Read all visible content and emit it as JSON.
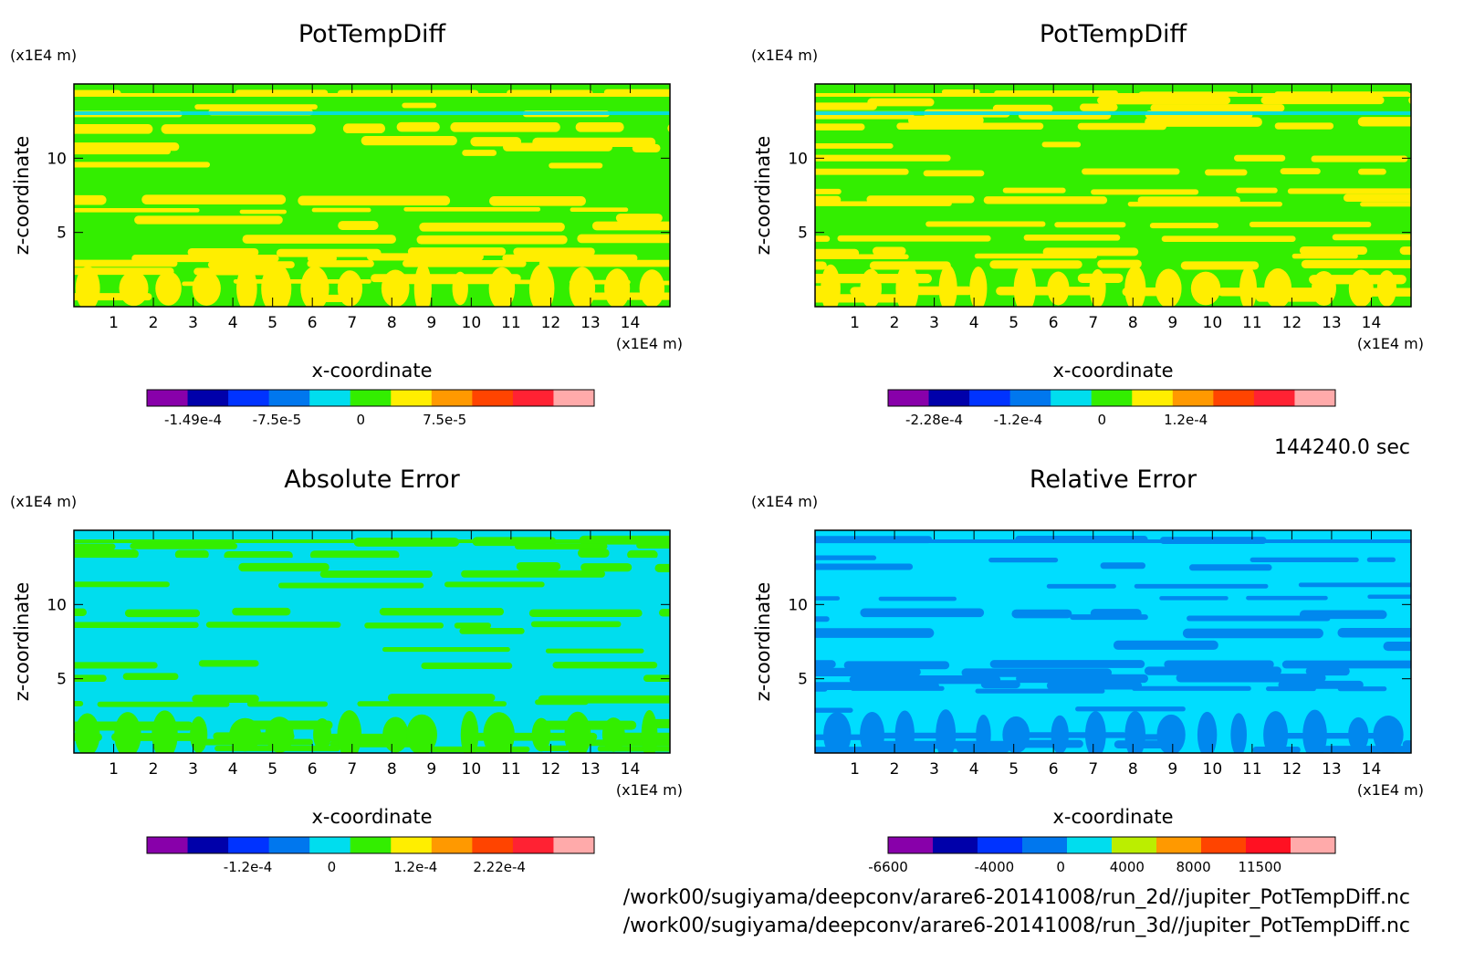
{
  "time_label": "144240.0 sec",
  "footer": {
    "line1": "/work00/sugiyama/deepconv/arare6-20141008/run_2d//jupiter_PotTempDiff.nc",
    "line2": "/work00/sugiyama/deepconv/arare6-20141008/run_3d//jupiter_PotTempDiff.nc"
  },
  "chart_data": [
    {
      "type": "heatmap",
      "title": "PotTempDiff",
      "xlabel": "x-coordinate",
      "ylabel": "z-coordinate",
      "xunit": "(x1E4 m)",
      "yunit": "(x1E4 m)",
      "xlim": [
        0,
        15
      ],
      "ylim": [
        0,
        15
      ],
      "xticks": [
        "1",
        "2",
        "3",
        "4",
        "5",
        "6",
        "7",
        "8",
        "9",
        "10",
        "11",
        "12",
        "13",
        "14"
      ],
      "yticks": [
        "5",
        "10"
      ],
      "field_colors": [
        "#33ee00",
        "#ffee00"
      ],
      "colorbar": {
        "colors": [
          "#8800aa",
          "#0000aa",
          "#0033ff",
          "#0077ee",
          "#00ddee",
          "#33ee00",
          "#ffee00",
          "#ff9900",
          "#ff4400",
          "#ff2233",
          "#ffaaaa"
        ],
        "ticks": [
          "-1.49e-4",
          "-7.5e-5",
          "0",
          "7.5e-5"
        ]
      }
    },
    {
      "type": "heatmap",
      "title": "PotTempDiff",
      "xlabel": "x-coordinate",
      "ylabel": "z-coordinate",
      "xunit": "(x1E4 m)",
      "yunit": "(x1E4 m)",
      "xlim": [
        0,
        15
      ],
      "ylim": [
        0,
        15
      ],
      "xticks": [
        "1",
        "2",
        "3",
        "4",
        "5",
        "6",
        "7",
        "8",
        "9",
        "10",
        "11",
        "12",
        "13",
        "14"
      ],
      "yticks": [
        "5",
        "10"
      ],
      "field_colors": [
        "#33ee00",
        "#ffee00"
      ],
      "colorbar": {
        "colors": [
          "#8800aa",
          "#0000aa",
          "#0033ff",
          "#0077ee",
          "#00ddee",
          "#33ee00",
          "#ffee00",
          "#ff9900",
          "#ff4400",
          "#ff2233",
          "#ffaaaa"
        ],
        "ticks": [
          "-2.28e-4",
          "-1.2e-4",
          "0",
          "1.2e-4"
        ]
      }
    },
    {
      "type": "heatmap",
      "title": "Absolute Error",
      "xlabel": "x-coordinate",
      "ylabel": "z-coordinate",
      "xunit": "(x1E4 m)",
      "yunit": "(x1E4 m)",
      "xlim": [
        0,
        15
      ],
      "ylim": [
        0,
        15
      ],
      "xticks": [
        "1",
        "2",
        "3",
        "4",
        "5",
        "6",
        "7",
        "8",
        "9",
        "10",
        "11",
        "12",
        "13",
        "14"
      ],
      "yticks": [
        "5",
        "10"
      ],
      "field_colors": [
        "#00ddee",
        "#33ee00"
      ],
      "colorbar": {
        "colors": [
          "#8800aa",
          "#0000aa",
          "#0033ff",
          "#0077ee",
          "#00ddee",
          "#33ee00",
          "#ffee00",
          "#ff9900",
          "#ff4400",
          "#ff2233",
          "#ffaaaa"
        ],
        "ticks": [
          "-1.2e-4",
          "0",
          "1.2e-4",
          "2.22e-4"
        ]
      }
    },
    {
      "type": "heatmap",
      "title": "Relative Error",
      "xlabel": "x-coordinate",
      "ylabel": "z-coordinate",
      "xunit": "(x1E4 m)",
      "yunit": "(x1E4 m)",
      "xlim": [
        0,
        15
      ],
      "ylim": [
        0,
        15
      ],
      "xticks": [
        "1",
        "2",
        "3",
        "4",
        "5",
        "6",
        "7",
        "8",
        "9",
        "10",
        "11",
        "12",
        "13",
        "14"
      ],
      "yticks": [
        "5",
        "10"
      ],
      "field_colors": [
        "#00ddff",
        "#0088ee"
      ],
      "colorbar": {
        "colors": [
          "#8800aa",
          "#0000aa",
          "#0033ff",
          "#0077ee",
          "#00ddee",
          "#bbee00",
          "#ff9900",
          "#ff4400",
          "#ff1122",
          "#ffaaaa"
        ],
        "ticks": [
          "-6600",
          "-4000",
          "0",
          "4000",
          "8000",
          "11500"
        ]
      }
    }
  ]
}
